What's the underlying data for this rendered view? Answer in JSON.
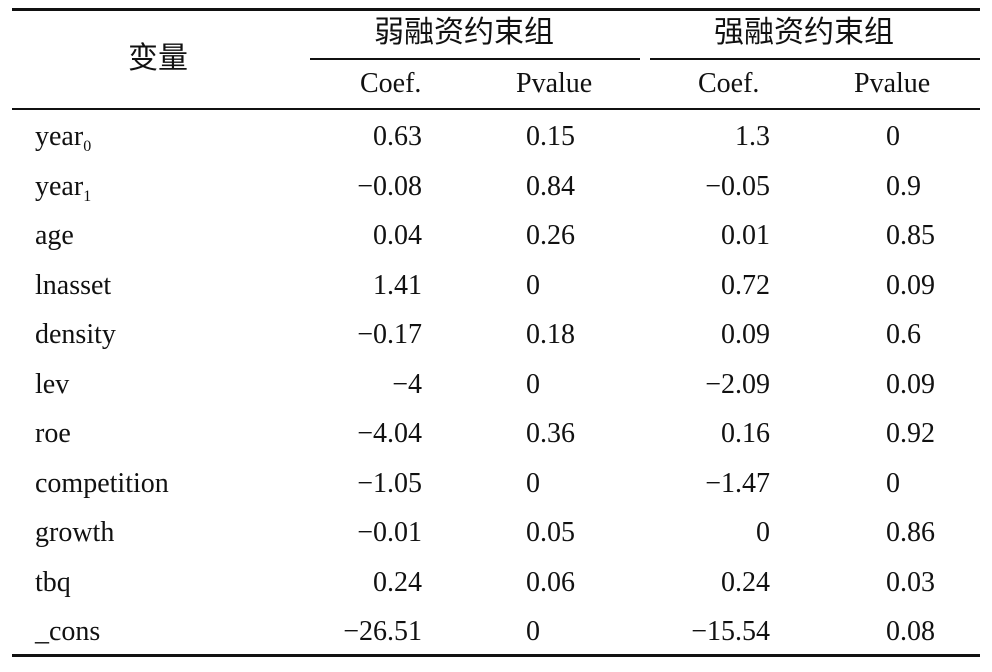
{
  "table": {
    "header": {
      "variable_label": "变量",
      "group1": "弱融资约束组",
      "group2": "强融资约束组",
      "coef": "Coef.",
      "pvalue": "Pvalue"
    },
    "rows": [
      {
        "var": "year",
        "sub": "0",
        "c1": "0.63",
        "p1": "0.15",
        "c2": "1.3",
        "p2": "0"
      },
      {
        "var": "year",
        "sub": "1",
        "c1": "−0.08",
        "p1": "0.84",
        "c2": "−0.05",
        "p2": "0.9"
      },
      {
        "var": "age",
        "sub": "",
        "c1": "0.04",
        "p1": "0.26",
        "c2": "0.01",
        "p2": "0.85"
      },
      {
        "var": "lnasset",
        "sub": "",
        "c1": "1.41",
        "p1": "0",
        "c2": "0.72",
        "p2": "0.09"
      },
      {
        "var": "density",
        "sub": "",
        "c1": "−0.17",
        "p1": "0.18",
        "c2": "0.09",
        "p2": "0.6"
      },
      {
        "var": "lev",
        "sub": "",
        "c1": "−4",
        "p1": "0",
        "c2": "−2.09",
        "p2": "0.09"
      },
      {
        "var": "roe",
        "sub": "",
        "c1": "−4.04",
        "p1": "0.36",
        "c2": "0.16",
        "p2": "0.92"
      },
      {
        "var": "competition",
        "sub": "",
        "c1": "−1.05",
        "p1": "0",
        "c2": "−1.47",
        "p2": "0"
      },
      {
        "var": "growth",
        "sub": "",
        "c1": "−0.01",
        "p1": "0.05",
        "c2": "0",
        "p2": "0.86"
      },
      {
        "var": "tbq",
        "sub": "",
        "c1": "0.24",
        "p1": "0.06",
        "c2": "0.24",
        "p2": "0.03"
      },
      {
        "var": "_cons",
        "sub": "",
        "c1": "−26.51",
        "p1": "0",
        "c2": "−15.54",
        "p2": "0.08"
      }
    ]
  }
}
